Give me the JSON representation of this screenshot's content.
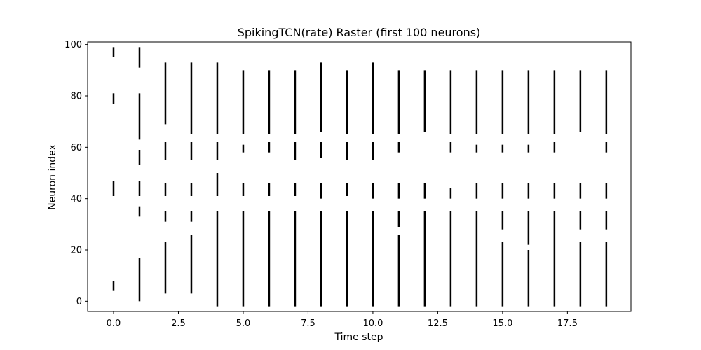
{
  "chart_data": {
    "type": "scatter",
    "marker": "vertical-line",
    "title": "SpikingTCN(rate) Raster (first 100 neurons)",
    "xlabel": "Time step",
    "ylabel": "Neuron index",
    "xlim": [
      -1,
      19.95
    ],
    "ylim": [
      -4,
      101
    ],
    "xticks": [
      0,
      2.5,
      5,
      7.5,
      10,
      12.5,
      15,
      17.5
    ],
    "xtick_labels": [
      "0.0",
      "2.5",
      "5.0",
      "7.5",
      "10.0",
      "12.5",
      "15.0",
      "17.5"
    ],
    "yticks": [
      0,
      20,
      40,
      60,
      80,
      100
    ],
    "ytick_labels": [
      "0",
      "20",
      "40",
      "60",
      "80",
      "100"
    ],
    "grid": false,
    "colors": {
      "marker": "#000000",
      "axes": "#000000",
      "background": "#ffffff"
    },
    "series": [
      {
        "x": 0,
        "spike_ranges": [
          [
            4,
            8
          ],
          [
            41,
            47
          ],
          [
            77,
            81
          ],
          [
            95,
            99
          ]
        ]
      },
      {
        "x": 1,
        "spike_ranges": [
          [
            0,
            17
          ],
          [
            33,
            37
          ],
          [
            41,
            47
          ],
          [
            53,
            59
          ],
          [
            63,
            81
          ],
          [
            91,
            99
          ]
        ]
      },
      {
        "x": 2,
        "spike_ranges": [
          [
            3,
            23
          ],
          [
            31,
            35
          ],
          [
            41,
            46
          ],
          [
            55,
            62
          ],
          [
            69,
            93
          ]
        ]
      },
      {
        "x": 3,
        "spike_ranges": [
          [
            3,
            26
          ],
          [
            31,
            35
          ],
          [
            41,
            46
          ],
          [
            55,
            62
          ],
          [
            65,
            93
          ]
        ]
      },
      {
        "x": 4,
        "spike_ranges": [
          [
            -2,
            35
          ],
          [
            41,
            50
          ],
          [
            55,
            62
          ],
          [
            65,
            93
          ]
        ]
      },
      {
        "x": 5,
        "spike_ranges": [
          [
            -2,
            35
          ],
          [
            41,
            46
          ],
          [
            58,
            61
          ],
          [
            65,
            90
          ]
        ]
      },
      {
        "x": 6,
        "spike_ranges": [
          [
            -2,
            35
          ],
          [
            41,
            46
          ],
          [
            58,
            62
          ],
          [
            65,
            90
          ]
        ]
      },
      {
        "x": 7,
        "spike_ranges": [
          [
            -2,
            35
          ],
          [
            41,
            46
          ],
          [
            55,
            62
          ],
          [
            65,
            90
          ]
        ]
      },
      {
        "x": 8,
        "spike_ranges": [
          [
            -2,
            35
          ],
          [
            40,
            46
          ],
          [
            56,
            62
          ],
          [
            66,
            93
          ]
        ]
      },
      {
        "x": 9,
        "spike_ranges": [
          [
            -2,
            35
          ],
          [
            41,
            46
          ],
          [
            55,
            62
          ],
          [
            65,
            90
          ]
        ]
      },
      {
        "x": 10,
        "spike_ranges": [
          [
            -2,
            35
          ],
          [
            40,
            46
          ],
          [
            55,
            62
          ],
          [
            65,
            93
          ]
        ]
      },
      {
        "x": 11,
        "spike_ranges": [
          [
            -2,
            26
          ],
          [
            29,
            35
          ],
          [
            40,
            46
          ],
          [
            58,
            62
          ],
          [
            65,
            90
          ]
        ]
      },
      {
        "x": 12,
        "spike_ranges": [
          [
            -2,
            35
          ],
          [
            40,
            46
          ],
          [
            66,
            90
          ]
        ]
      },
      {
        "x": 13,
        "spike_ranges": [
          [
            -2,
            35
          ],
          [
            40,
            44
          ],
          [
            58,
            62
          ],
          [
            65,
            90
          ]
        ]
      },
      {
        "x": 14,
        "spike_ranges": [
          [
            -2,
            35
          ],
          [
            40,
            46
          ],
          [
            58,
            61
          ],
          [
            65,
            90
          ]
        ]
      },
      {
        "x": 15,
        "spike_ranges": [
          [
            -2,
            23
          ],
          [
            28,
            35
          ],
          [
            40,
            46
          ],
          [
            58,
            61
          ],
          [
            65,
            90
          ]
        ]
      },
      {
        "x": 16,
        "spike_ranges": [
          [
            -2,
            20
          ],
          [
            22,
            35
          ],
          [
            40,
            46
          ],
          [
            58,
            61
          ],
          [
            65,
            90
          ]
        ]
      },
      {
        "x": 17,
        "spike_ranges": [
          [
            -2,
            35
          ],
          [
            40,
            46
          ],
          [
            58,
            62
          ],
          [
            65,
            90
          ]
        ]
      },
      {
        "x": 18,
        "spike_ranges": [
          [
            -2,
            23
          ],
          [
            28,
            35
          ],
          [
            40,
            46
          ],
          [
            66,
            90
          ]
        ]
      },
      {
        "x": 19,
        "spike_ranges": [
          [
            -2,
            23
          ],
          [
            28,
            35
          ],
          [
            40,
            46
          ],
          [
            58,
            62
          ],
          [
            65,
            90
          ]
        ]
      }
    ]
  }
}
